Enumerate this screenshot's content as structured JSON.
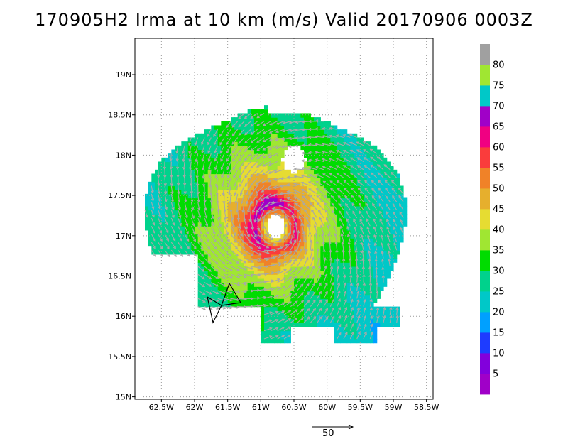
{
  "title": "170905H2 Irma at 10 km (m/s) Valid 20170906 0003Z",
  "chart_data": {
    "type": "heatmap",
    "title": "170905H2 Irma at 10 km (m/s) Valid 20170906 0003Z",
    "xlim": [
      -62.9,
      -58.4
    ],
    "ylim": [
      14.97,
      19.45
    ],
    "x_ticks": [
      {
        "value": -62.5,
        "label": "62.5W"
      },
      {
        "value": -62.0,
        "label": "62W"
      },
      {
        "value": -61.5,
        "label": "61.5W"
      },
      {
        "value": -61.0,
        "label": "61W"
      },
      {
        "value": -60.5,
        "label": "60.5W"
      },
      {
        "value": -60.0,
        "label": "60W"
      },
      {
        "value": -59.5,
        "label": "59.5W"
      },
      {
        "value": -59.0,
        "label": "59W"
      },
      {
        "value": -58.5,
        "label": "58.5W"
      }
    ],
    "y_ticks": [
      {
        "value": 15.0,
        "label": "15N"
      },
      {
        "value": 15.5,
        "label": "15.5N"
      },
      {
        "value": 16.0,
        "label": "16N"
      },
      {
        "value": 16.5,
        "label": "16.5N"
      },
      {
        "value": 17.0,
        "label": "17N"
      },
      {
        "value": 17.5,
        "label": "17.5N"
      },
      {
        "value": 18.0,
        "label": "18N"
      },
      {
        "value": 18.5,
        "label": "18.5N"
      },
      {
        "value": 19.0,
        "label": "19N"
      }
    ],
    "grid": true,
    "colorbar": {
      "placement": "right",
      "levels": [
        {
          "from": 0,
          "to": 5,
          "color": "#a000c8"
        },
        {
          "from": 5,
          "to": 10,
          "color": "#8200dc"
        },
        {
          "from": 10,
          "to": 15,
          "color": "#1e3cff"
        },
        {
          "from": 15,
          "to": 20,
          "color": "#00a0ff"
        },
        {
          "from": 20,
          "to": 25,
          "color": "#00c8c8"
        },
        {
          "from": 25,
          "to": 30,
          "color": "#00d28c"
        },
        {
          "from": 30,
          "to": 35,
          "color": "#00dc00"
        },
        {
          "from": 35,
          "to": 40,
          "color": "#a0e632"
        },
        {
          "from": 40,
          "to": 45,
          "color": "#e6dc32"
        },
        {
          "from": 45,
          "to": 50,
          "color": "#e6af2d"
        },
        {
          "from": 50,
          "to": 55,
          "color": "#f08228"
        },
        {
          "from": 55,
          "to": 60,
          "color": "#fa3c3c"
        },
        {
          "from": 60,
          "to": 65,
          "color": "#f00082"
        },
        {
          "from": 65,
          "to": 70,
          "color": "#a000c8"
        },
        {
          "from": 70,
          "to": 75,
          "color": "#00c8c8"
        },
        {
          "from": 75,
          "to": 80,
          "color": "#a0e632"
        },
        {
          "from": 80,
          "to": 85,
          "color": "#a0a0a0"
        }
      ],
      "labels": [
        "5",
        "10",
        "15",
        "20",
        "25",
        "30",
        "35",
        "40",
        "45",
        "50",
        "55",
        "60",
        "65",
        "70",
        "75",
        "80"
      ]
    },
    "storm_center": {
      "lon": -60.78,
      "lat": 17.12
    },
    "eye_radius_deg": 0.14,
    "max_wind_ms": 65,
    "rmw_deg": 0.3,
    "vector_reference": {
      "label": "50",
      "value_ms": 50
    }
  }
}
